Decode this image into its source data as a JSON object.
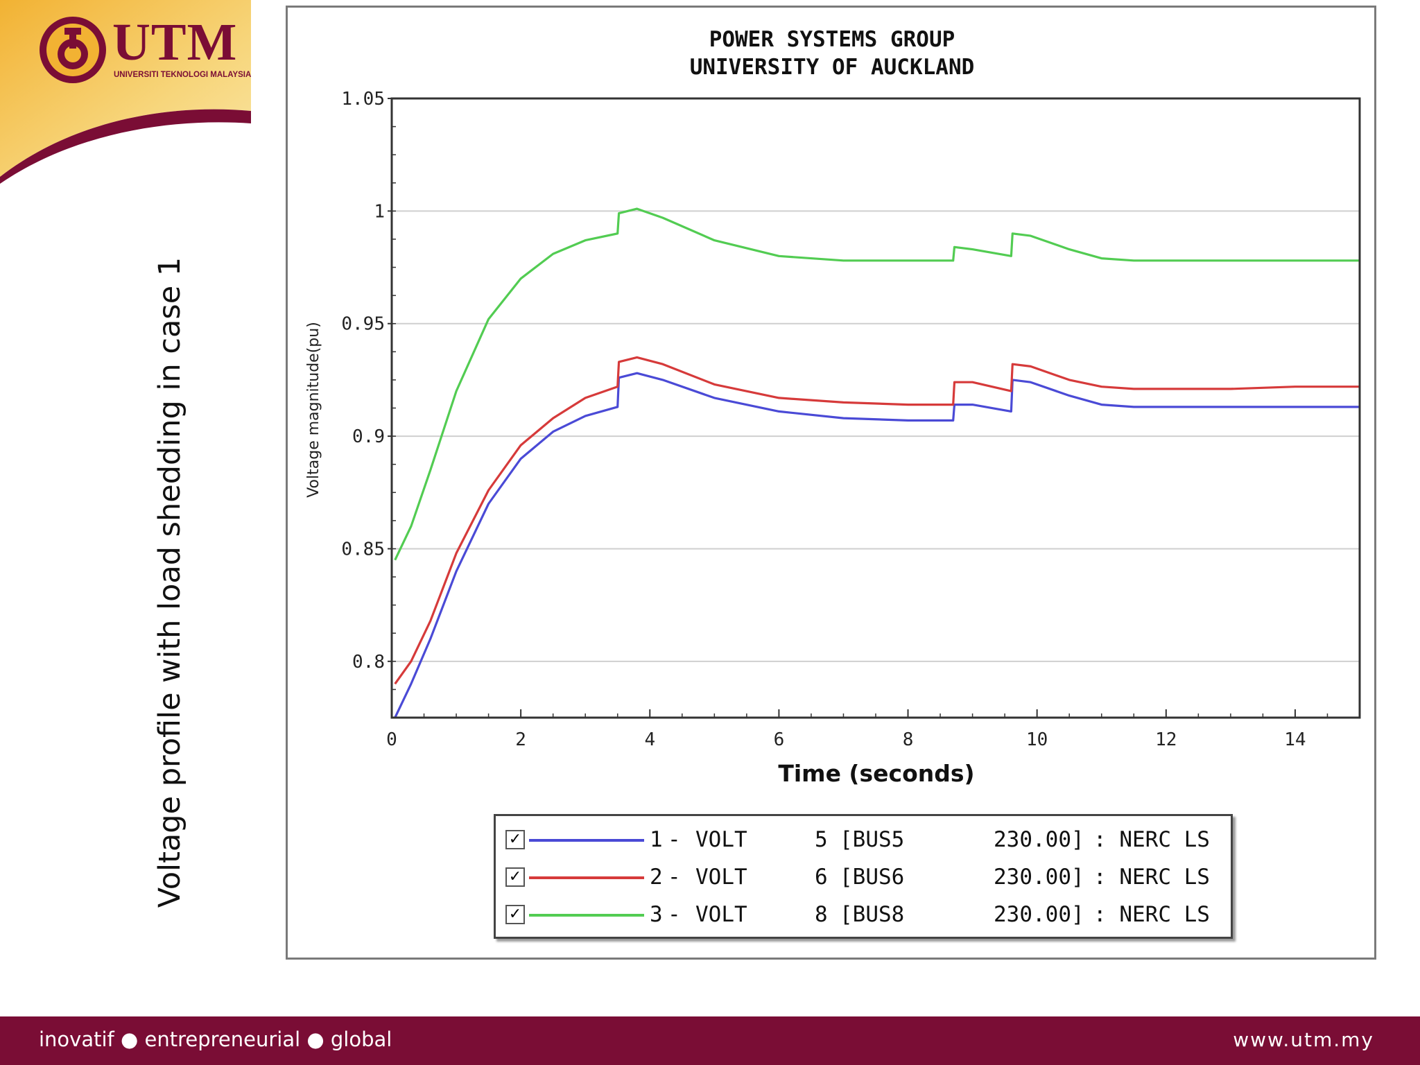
{
  "slide": {
    "side_title": "Voltage profile with load shedding in case 1",
    "logo": {
      "name": "UTM",
      "subtitle": "UNIVERSITI TEKNOLOGI MALAYSIA"
    },
    "footer_left": "inovatif ● entrepreneurial ● global",
    "footer_right": "www.utm.my",
    "colors": {
      "maroon": "#7a0d35",
      "gold": "#f4c542"
    }
  },
  "chart_data": {
    "type": "line",
    "title": "POWER SYSTEMS GROUP",
    "subtitle": "UNIVERSITY OF AUCKLAND",
    "xlabel": "Time (seconds)",
    "ylabel": "Voltage magnitude(pu)",
    "xlim": [
      0,
      15
    ],
    "ylim": [
      0.775,
      1.05
    ],
    "xticks": [
      0,
      2,
      4,
      6,
      8,
      10,
      12,
      14
    ],
    "xtick_labels": [
      "0",
      "2",
      "4",
      "6",
      "8",
      "10",
      "12",
      "14"
    ],
    "yticks": [
      0.8,
      0.85,
      0.9,
      0.95,
      1,
      1.05
    ],
    "ytick_labels": [
      "0.8",
      "0.85",
      "0.9",
      "0.95",
      "1",
      "1.05"
    ],
    "grid": true,
    "legend_position": "bottom",
    "series": [
      {
        "index": "1",
        "var": "VOLT",
        "bus": "5",
        "bus_name": "[BUS5",
        "kv": "230.00]",
        "tag": ": NERC LS",
        "color": "#4a4ad6",
        "x": [
          0.05,
          0.3,
          0.6,
          1.0,
          1.5,
          2.0,
          2.5,
          3.0,
          3.5,
          3.52,
          3.8,
          4.2,
          5.0,
          6.0,
          7.0,
          8.0,
          8.7,
          8.72,
          9.0,
          9.6,
          9.62,
          9.9,
          10.5,
          11.0,
          11.5,
          12.0,
          13.0,
          14.0,
          15.0
        ],
        "y": [
          0.775,
          0.79,
          0.81,
          0.84,
          0.87,
          0.89,
          0.902,
          0.909,
          0.913,
          0.926,
          0.928,
          0.925,
          0.917,
          0.911,
          0.908,
          0.907,
          0.907,
          0.914,
          0.914,
          0.911,
          0.925,
          0.924,
          0.918,
          0.914,
          0.913,
          0.913,
          0.913,
          0.913,
          0.913
        ]
      },
      {
        "index": "2",
        "var": "VOLT",
        "bus": "6",
        "bus_name": "[BUS6",
        "kv": "230.00]",
        "tag": ": NERC LS",
        "color": "#d63a3a",
        "x": [
          0.05,
          0.3,
          0.6,
          1.0,
          1.5,
          2.0,
          2.5,
          3.0,
          3.5,
          3.52,
          3.8,
          4.2,
          5.0,
          6.0,
          7.0,
          8.0,
          8.7,
          8.72,
          9.0,
          9.6,
          9.62,
          9.9,
          10.5,
          11.0,
          11.5,
          12.0,
          13.0,
          14.0,
          15.0
        ],
        "y": [
          0.79,
          0.8,
          0.818,
          0.848,
          0.876,
          0.896,
          0.908,
          0.917,
          0.922,
          0.933,
          0.935,
          0.932,
          0.923,
          0.917,
          0.915,
          0.914,
          0.914,
          0.924,
          0.924,
          0.92,
          0.932,
          0.931,
          0.925,
          0.922,
          0.921,
          0.921,
          0.921,
          0.922,
          0.922
        ]
      },
      {
        "index": "3",
        "var": "VOLT",
        "bus": "8",
        "bus_name": "[BUS8",
        "kv": "230.00]",
        "tag": ": NERC LS",
        "color": "#52cc52",
        "x": [
          0.05,
          0.3,
          0.6,
          1.0,
          1.5,
          2.0,
          2.5,
          3.0,
          3.5,
          3.52,
          3.8,
          4.2,
          5.0,
          6.0,
          7.0,
          8.0,
          8.7,
          8.72,
          9.0,
          9.6,
          9.62,
          9.9,
          10.5,
          11.0,
          11.5,
          12.0,
          13.0,
          14.0,
          15.0
        ],
        "y": [
          0.845,
          0.86,
          0.885,
          0.92,
          0.952,
          0.97,
          0.981,
          0.987,
          0.99,
          0.999,
          1.001,
          0.997,
          0.987,
          0.98,
          0.978,
          0.978,
          0.978,
          0.984,
          0.983,
          0.98,
          0.99,
          0.989,
          0.983,
          0.979,
          0.978,
          0.978,
          0.978,
          0.978,
          0.978
        ]
      }
    ]
  }
}
